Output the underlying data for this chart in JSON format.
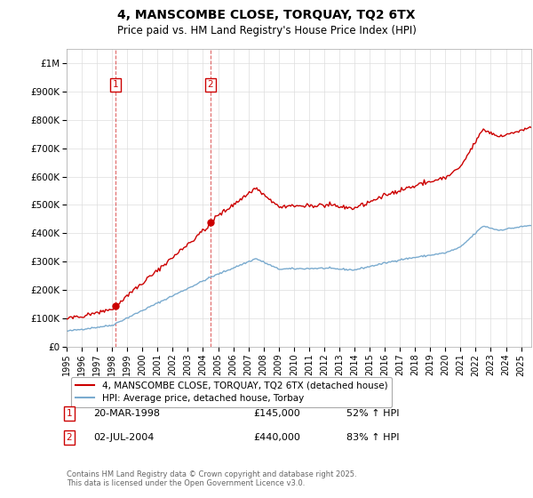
{
  "title": "4, MANSCOMBE CLOSE, TORQUAY, TQ2 6TX",
  "subtitle": "Price paid vs. HM Land Registry's House Price Index (HPI)",
  "ylim": [
    0,
    1050000
  ],
  "yticks": [
    0,
    100000,
    200000,
    300000,
    400000,
    500000,
    600000,
    700000,
    800000,
    900000,
    1000000
  ],
  "ytick_labels": [
    "£0",
    "£100K",
    "£200K",
    "£300K",
    "£400K",
    "£500K",
    "£600K",
    "£700K",
    "£800K",
    "£900K",
    "£1M"
  ],
  "xlim_start": 1995.0,
  "xlim_end": 2025.67,
  "xtick_years": [
    1995,
    1996,
    1997,
    1998,
    1999,
    2000,
    2001,
    2002,
    2003,
    2004,
    2005,
    2006,
    2007,
    2008,
    2009,
    2010,
    2011,
    2012,
    2013,
    2014,
    2015,
    2016,
    2017,
    2018,
    2019,
    2020,
    2021,
    2022,
    2023,
    2024,
    2025
  ],
  "red_line_color": "#cc0000",
  "blue_line_color": "#7aabcf",
  "sale1_x": 1998.22,
  "sale1_y": 145000,
  "sale2_x": 2004.5,
  "sale2_y": 440000,
  "legend_red": "4, MANSCOMBE CLOSE, TORQUAY, TQ2 6TX (detached house)",
  "legend_blue": "HPI: Average price, detached house, Torbay",
  "table_rows": [
    {
      "num": "1",
      "date": "20-MAR-1998",
      "price": "£145,000",
      "hpi": "52% ↑ HPI"
    },
    {
      "num": "2",
      "date": "02-JUL-2004",
      "price": "£440,000",
      "hpi": "83% ↑ HPI"
    }
  ],
  "footnote": "Contains HM Land Registry data © Crown copyright and database right 2025.\nThis data is licensed under the Open Government Licence v3.0.",
  "background_color": "#ffffff",
  "grid_color": "#dddddd"
}
